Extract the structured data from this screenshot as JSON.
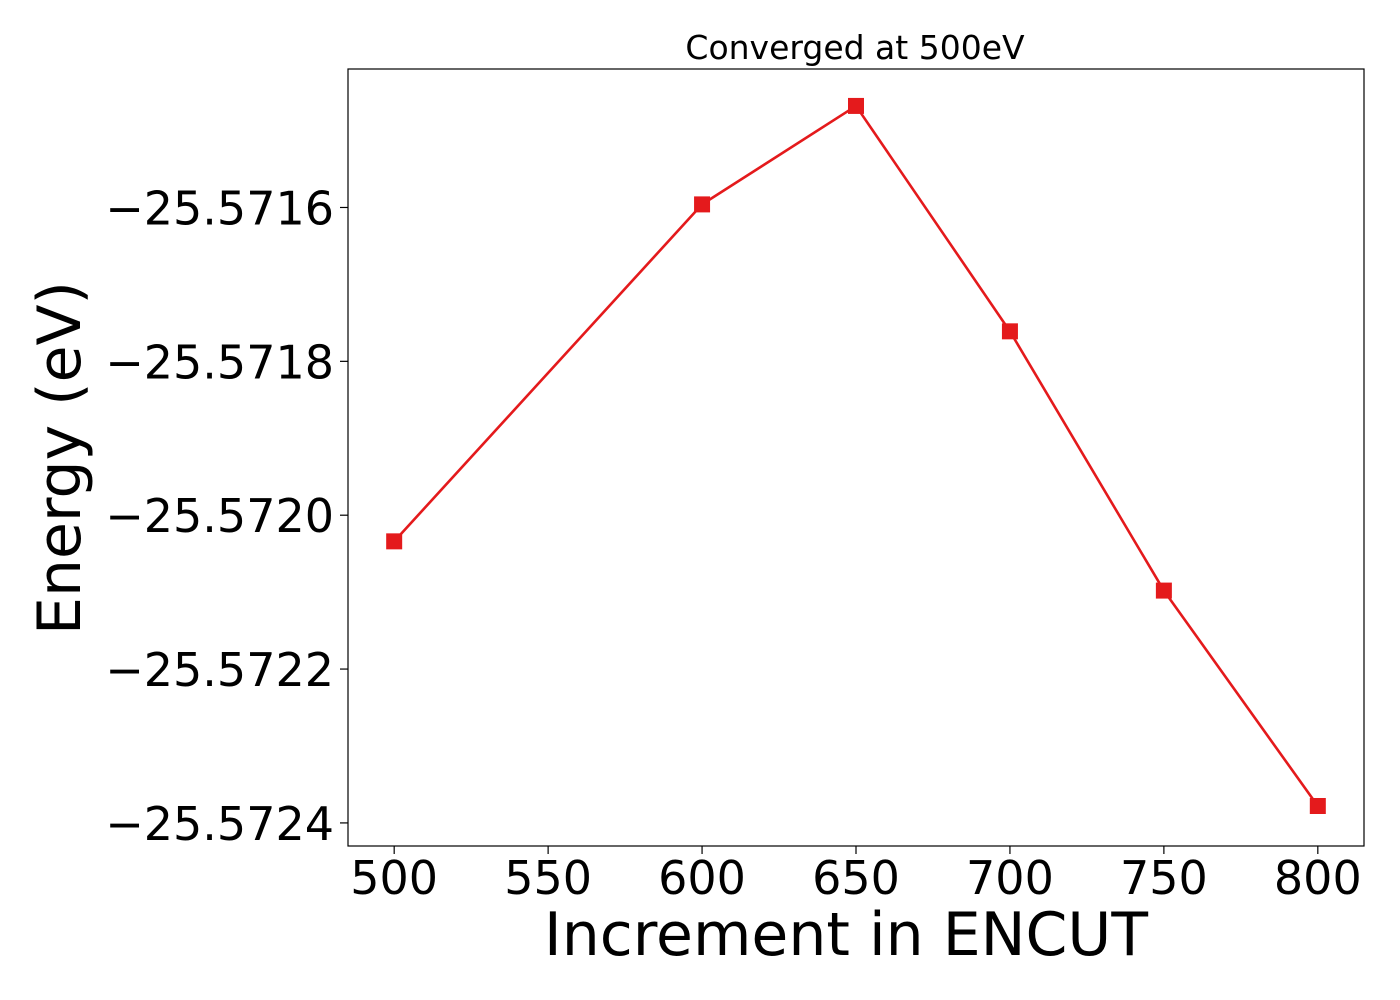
{
  "chart_data": {
    "type": "line",
    "title": "Converged at 500eV",
    "xlabel": "Increment in ENCUT",
    "ylabel": "Energy (eV)",
    "x": [
      500,
      600,
      650,
      700,
      750,
      800
    ],
    "series": [
      {
        "values": [
          -25.572034,
          -25.571596,
          -25.571468,
          -25.571761,
          -25.572098,
          -25.572378
        ],
        "color": "#e41a1c",
        "marker": "square"
      }
    ],
    "xlim": [
      485,
      815
    ],
    "ylim": [
      -25.57243,
      -25.57142
    ],
    "xticks": [
      500,
      550,
      600,
      650,
      700,
      750,
      800
    ],
    "xtick_labels": [
      "500",
      "550",
      "600",
      "650",
      "700",
      "750",
      "800"
    ],
    "yticks": [
      -25.5716,
      -25.5718,
      -25.572,
      -25.5722,
      -25.5724
    ],
    "ytick_labels": [
      "−25.5716",
      "−25.5718",
      "−25.5720",
      "−25.5722",
      "−25.5724"
    ],
    "grid": false,
    "legend": "none"
  }
}
